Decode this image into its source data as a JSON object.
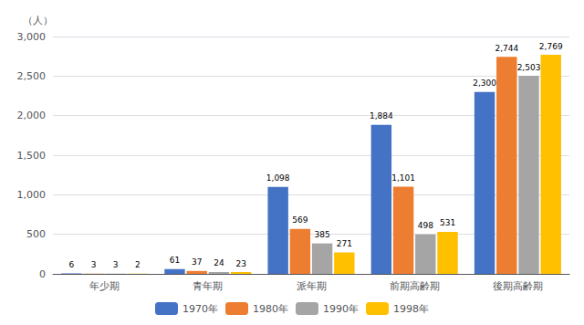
{
  "chart_data": {
    "type": "bar",
    "ylabel": "（人）",
    "categories": [
      "年少期",
      "青年期",
      "派年期",
      "前期高齢期",
      "後期高齢期"
    ],
    "series": [
      {
        "name": "1970年",
        "color": "#4472C4",
        "values": [
          6,
          61,
          1098,
          1884,
          2300
        ],
        "value_labels": [
          "6",
          "61",
          "1,098",
          "1,884",
          "2,300"
        ]
      },
      {
        "name": "1980年",
        "color": "#ED7D31",
        "values": [
          3,
          37,
          569,
          1101,
          2744
        ],
        "value_labels": [
          "3",
          "37",
          "569",
          "1,101",
          "2,744"
        ]
      },
      {
        "name": "1990年",
        "color": "#A5A5A5",
        "values": [
          3,
          24,
          385,
          498,
          2503
        ],
        "value_labels": [
          "3",
          "24",
          "385",
          "498",
          "2,503"
        ]
      },
      {
        "name": "1998年",
        "color": "#FFC000",
        "values": [
          2,
          23,
          271,
          531,
          2769
        ],
        "value_labels": [
          "2",
          "23",
          "271",
          "531",
          "2,769"
        ]
      }
    ],
    "ylim": [
      0,
      3000
    ],
    "yticks": [
      0,
      500,
      {
        "value": 1000,
        "label": "1,000"
      },
      {
        "value": 1500,
        "label": "1,500"
      },
      {
        "value": 2000,
        "label": "2,000"
      },
      {
        "value": 2500,
        "label": "2,500"
      },
      {
        "value": 3000,
        "label": "3,000"
      }
    ],
    "grid": true,
    "legend": "bottom",
    "data_labels": true
  }
}
